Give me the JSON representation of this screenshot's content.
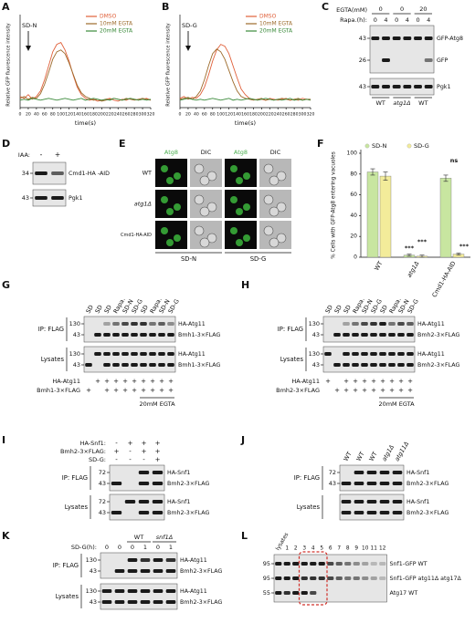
{
  "chart_data": [
    {
      "letter": "A",
      "type": "line",
      "annotation": "SD-N",
      "ylabel": "Relative GFP fluorescence intensity",
      "xlabel": "time(s)",
      "x": [
        0,
        10,
        20,
        30,
        40,
        50,
        60,
        70,
        80,
        90,
        100,
        110,
        120,
        130,
        140,
        150,
        160,
        170,
        180,
        190,
        200,
        210,
        220,
        230,
        240,
        250,
        260,
        270,
        280,
        290,
        300,
        310,
        320
      ],
      "xlim": [
        0,
        320
      ],
      "xticks": [
        0,
        20,
        40,
        60,
        80,
        100,
        120,
        140,
        160,
        180,
        200,
        220,
        240,
        260,
        280,
        300,
        320
      ],
      "ylim": [
        0,
        100
      ],
      "series": [
        {
          "name": "DMSO",
          "color": "#e0603a",
          "values": [
            12,
            10,
            14,
            9,
            12,
            18,
            30,
            45,
            60,
            68,
            70,
            62,
            50,
            35,
            22,
            14,
            10,
            8,
            9,
            7,
            8,
            9,
            10,
            8,
            7,
            9,
            8,
            10,
            9,
            8,
            9,
            10,
            8
          ]
        },
        {
          "name": "10mM EGTA",
          "color": "#9c6a2a",
          "values": [
            10,
            12,
            9,
            11,
            10,
            15,
            25,
            38,
            52,
            60,
            62,
            58,
            48,
            36,
            24,
            16,
            12,
            10,
            8,
            9,
            7,
            8,
            9,
            10,
            9,
            8,
            10,
            9,
            8,
            9,
            10,
            9,
            8
          ]
        },
        {
          "name": "20mM EGTA",
          "color": "#3a8a3a",
          "values": [
            8,
            9,
            8,
            10,
            9,
            8,
            9,
            10,
            9,
            8,
            9,
            10,
            9,
            8,
            9,
            10,
            8,
            9,
            10,
            9,
            8,
            9,
            8,
            10,
            9,
            8,
            9,
            10,
            9,
            8,
            9,
            8,
            9
          ]
        }
      ]
    },
    {
      "letter": "B",
      "type": "line",
      "annotation": "SD-G",
      "ylabel": "Relative GFP fluorescence intensity",
      "xlabel": "time(s)",
      "x": [
        0,
        10,
        20,
        30,
        40,
        50,
        60,
        70,
        80,
        90,
        100,
        110,
        120,
        130,
        140,
        150,
        160,
        170,
        180,
        190,
        200,
        210,
        220,
        230,
        240,
        250,
        260,
        270,
        280,
        290,
        300,
        310,
        320
      ],
      "xlim": [
        0,
        320
      ],
      "xticks": [
        0,
        20,
        40,
        60,
        80,
        100,
        120,
        140,
        160,
        180,
        200,
        220,
        240,
        260,
        280,
        300,
        320
      ],
      "ylim": [
        0,
        100
      ],
      "series": [
        {
          "name": "DMSO",
          "color": "#e0603a",
          "values": [
            10,
            12,
            9,
            11,
            10,
            14,
            22,
            35,
            50,
            62,
            68,
            66,
            58,
            45,
            32,
            20,
            14,
            10,
            9,
            8,
            9,
            8,
            10,
            9,
            8,
            9,
            10,
            8,
            9,
            8,
            10,
            9,
            8
          ]
        },
        {
          "name": "10mM EGTA",
          "color": "#9c6a2a",
          "values": [
            9,
            10,
            11,
            9,
            12,
            18,
            30,
            45,
            58,
            63,
            60,
            52,
            40,
            28,
            18,
            12,
            10,
            9,
            8,
            9,
            10,
            8,
            9,
            8,
            9,
            10,
            9,
            8,
            9,
            10,
            8,
            9,
            9
          ]
        },
        {
          "name": "20mM EGTA",
          "color": "#3a8a3a",
          "values": [
            8,
            9,
            10,
            9,
            8,
            9,
            8,
            9,
            10,
            9,
            8,
            9,
            10,
            8,
            9,
            8,
            9,
            10,
            9,
            8,
            9,
            10,
            9,
            8,
            9,
            8,
            9,
            10,
            8,
            9,
            8,
            9,
            8
          ]
        }
      ]
    },
    {
      "letter": "F",
      "type": "bar",
      "ylabel": "% Cells with GFP-Atg8 entering vacuoles",
      "categories": [
        "WT",
        "atg1Δ",
        "Cmd1-HA-AID"
      ],
      "ylim": [
        0,
        100
      ],
      "yticks": [
        0,
        20,
        40,
        60,
        80,
        100
      ],
      "series": [
        {
          "name": "SD-N",
          "color": "#c8e6a0",
          "values": [
            82,
            2,
            76
          ],
          "errors": [
            3,
            1,
            3
          ]
        },
        {
          "name": "SD-G",
          "color": "#f3ec9a",
          "values": [
            78,
            1,
            3
          ],
          "errors": [
            4,
            1,
            1
          ]
        }
      ],
      "annotations": [
        "***",
        "***",
        "ns",
        "***"
      ]
    }
  ],
  "blots": {
    "C": {
      "letter": "C",
      "header_rows": [
        {
          "name": "EGTA(mM)",
          "values": [
            "0",
            "0",
            "20"
          ]
        },
        {
          "name": "Rapa.(h):",
          "values": [
            "0",
            "4",
            "0",
            "4",
            "0",
            "4"
          ]
        }
      ],
      "gels": [
        {
          "rows": [
            {
              "mw": "43",
              "protein": "GFP-Atg8"
            },
            {
              "mw": "26",
              "protein": "GFP"
            }
          ]
        },
        {
          "rows": [
            {
              "mw": "43",
              "protein": "Pgk1"
            }
          ]
        }
      ],
      "genotypes": [
        "WT",
        "atg1Δ",
        "WT"
      ]
    },
    "D": {
      "letter": "D",
      "header_rows": [
        {
          "name": "IAA:",
          "values": [
            "-",
            "+"
          ]
        }
      ],
      "gels": [
        {
          "rows": [
            {
              "mw": "34",
              "protein": "Cmd1-HA -AID"
            }
          ]
        },
        {
          "rows": [
            {
              "mw": "43",
              "protein": "Pgk1"
            }
          ]
        }
      ]
    },
    "G": {
      "letter": "G",
      "lanes": [
        "SD",
        "SD",
        "SD",
        "Rapa.",
        "SD-N",
        "SD-G",
        "SD",
        "Rapa.",
        "SD-N",
        "SD-G"
      ],
      "sections": [
        {
          "label": "IP: FLAG",
          "rows": [
            {
              "mw": "130",
              "protein": "HA-Atg11"
            },
            {
              "mw": "43",
              "protein": "Bmh1-3×FLAG"
            }
          ]
        },
        {
          "label": "Lysates",
          "rows": [
            {
              "mw": "130",
              "protein": "HA-Atg11"
            },
            {
              "mw": "43",
              "protein": "Bmh1-3×FLAG"
            }
          ]
        }
      ],
      "conditions": [
        {
          "name": "HA-Atg11",
          "marks": [
            null,
            "+",
            "+",
            "+",
            "+",
            "+",
            "+",
            "+",
            "+",
            "+"
          ]
        },
        {
          "name": "Bmh1-3×FLAG",
          "marks": [
            "+",
            null,
            "+",
            "+",
            "+",
            "+",
            "+",
            "+",
            "+",
            "+"
          ]
        }
      ],
      "treatment": "20mM EGTA"
    },
    "H": {
      "letter": "H",
      "lanes": [
        "SD",
        "SD",
        "SD",
        "Rapa.",
        "SD-N",
        "SD-G",
        "SD",
        "Rapa.",
        "SD-N",
        "SD-G"
      ],
      "sections": [
        {
          "label": "IP: FLAG",
          "rows": [
            {
              "mw": "130",
              "protein": "HA-Atg11"
            },
            {
              "mw": "43",
              "protein": "Bmh2-3×FLAG"
            }
          ]
        },
        {
          "label": "Lysates",
          "rows": [
            {
              "mw": "130",
              "protein": "HA-Atg11"
            },
            {
              "mw": "43",
              "protein": "Bmh2-3×FLAG"
            }
          ]
        }
      ],
      "conditions": [
        {
          "name": "HA-Atg11",
          "marks": [
            "+",
            null,
            "+",
            "+",
            "+",
            "+",
            "+",
            "+",
            "+",
            "+"
          ]
        },
        {
          "name": "Bmh2-3×FLAG",
          "marks": [
            null,
            "+",
            "+",
            "+",
            "+",
            "+",
            "+",
            "+",
            "+",
            "+"
          ]
        }
      ],
      "treatment": "20mM EGTA"
    },
    "I": {
      "letter": "I",
      "conditions": [
        {
          "name": "HA-Snf1:",
          "marks": [
            "-",
            "+",
            "+",
            "+"
          ]
        },
        {
          "name": "Bmh2-3×FLAG:",
          "marks": [
            "+",
            "-",
            "+",
            "+"
          ]
        },
        {
          "name": "SD-G:",
          "marks": [
            "-",
            "-",
            "-",
            "+"
          ]
        }
      ],
      "sections": [
        {
          "label": "IP: FLAG",
          "rows": [
            {
              "mw": "72",
              "protein": "HA-Snf1"
            },
            {
              "mw": "43",
              "protein": "Bmh2-3×FLAG"
            }
          ]
        },
        {
          "label": "Lysates",
          "rows": [
            {
              "mw": "72",
              "protein": "HA-Snf1"
            },
            {
              "mw": "43",
              "protein": "Bmh2-3×FLAG"
            }
          ]
        }
      ]
    },
    "J": {
      "letter": "J",
      "lanes": [
        "WT",
        "WT",
        "WT",
        "atg1Δ",
        "atg11Δ"
      ],
      "sections": [
        {
          "label": "IP: FLAG",
          "rows": [
            {
              "mw": "72",
              "protein": "HA-Snf1"
            },
            {
              "mw": "43",
              "protein": "Bmh2-3×FLAG"
            }
          ]
        },
        {
          "label": "Lysates",
          "rows": [
            {
              "mw": null,
              "protein": "HA-Snf1"
            },
            {
              "mw": null,
              "protein": "Bmh2-3×FLAG"
            }
          ]
        }
      ]
    },
    "K": {
      "letter": "K",
      "header_label": "SD-G(h):",
      "header_values": [
        "0",
        "0",
        "0",
        "1",
        "0",
        "1"
      ],
      "groups": [
        "WT",
        "snf1Δ"
      ],
      "sections": [
        {
          "label": "IP: FLAG",
          "rows": [
            {
              "mw": "130",
              "protein": "HA-Atg11"
            },
            {
              "mw": "43",
              "protein": "Bmh2-3×FLAG"
            }
          ]
        },
        {
          "label": "Lysates",
          "rows": [
            {
              "mw": "130",
              "protein": "HA-Atg11"
            },
            {
              "mw": "43",
              "protein": "Bmh2-3×FLAG"
            }
          ]
        }
      ]
    },
    "L": {
      "letter": "L",
      "lanes": [
        "lysates",
        "1",
        "2",
        "3",
        "4",
        "5",
        "6",
        "7",
        "8",
        "9",
        "10",
        "11",
        "12"
      ],
      "rows": [
        {
          "mw": "95",
          "protein": "Snf1-GFP WT"
        },
        {
          "mw": "95",
          "protein": "Snf1-GFP atg11Δ atg17Δ"
        },
        {
          "mw": "55",
          "protein": "Atg17 WT"
        }
      ]
    }
  },
  "micrograph": {
    "letter": "E",
    "columns": [
      "Atg8",
      "DIC",
      "Atg8",
      "DIC"
    ],
    "rows": [
      "WT",
      "atg1Δ",
      "Cmd1-HA-AID"
    ],
    "conditions": [
      "SD-N",
      "SD-G"
    ]
  }
}
